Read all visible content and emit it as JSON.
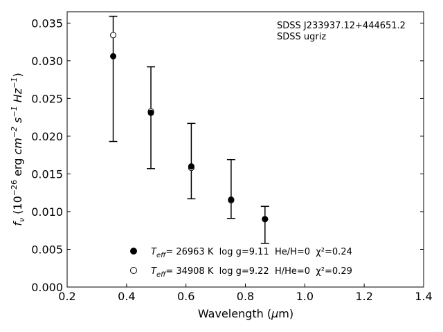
{
  "chart_data": {
    "type": "scatter",
    "xlabel": "Wavelength (μm)",
    "ylabel": "f_ν (10^-26 erg cm^-2 s^-1 Hz^-1)",
    "xlim": [
      0.2,
      1.4
    ],
    "ylim": [
      0.0,
      0.0365
    ],
    "xticks": [
      "0.2",
      "0.4",
      "0.6",
      "0.8",
      "1.0",
      "1.2",
      "1.4"
    ],
    "yticks": [
      "0.000",
      "0.005",
      "0.010",
      "0.015",
      "0.020",
      "0.025",
      "0.030",
      "0.035"
    ],
    "xtick_values": [
      0.2,
      0.4,
      0.6,
      0.8,
      1.0,
      1.2,
      1.4
    ],
    "ytick_values": [
      0.0,
      0.005,
      0.01,
      0.015,
      0.02,
      0.025,
      0.03,
      0.035
    ],
    "grid": false,
    "annotation": [
      "SDSS J233937.12+444651.2",
      "SDSS ugriz"
    ],
    "observed": {
      "x": [
        0.355,
        0.482,
        0.618,
        0.752,
        0.866
      ],
      "y_low": [
        0.0193,
        0.0157,
        0.0117,
        0.0091,
        0.0058
      ],
      "y_high": [
        0.0359,
        0.0292,
        0.0217,
        0.0169,
        0.0107
      ]
    },
    "series": [
      {
        "marker": "filled-circle",
        "legend_teff": "= 26963 K",
        "legend_rest": "  log g=9.11  He/H=0  χ²=0.24",
        "x": [
          0.355,
          0.482,
          0.618,
          0.752,
          0.866
        ],
        "y": [
          0.0306,
          0.0231,
          0.016,
          0.0116,
          0.009
        ]
      },
      {
        "marker": "open-circle",
        "legend_teff": "= 34908 K",
        "legend_rest": "  log g=9.22  H/He=0  χ²=0.29",
        "x": [
          0.355,
          0.482,
          0.618,
          0.752,
          0.866
        ],
        "y": [
          0.0334,
          0.0233,
          0.0158,
          0.0115,
          0.009
        ]
      }
    ]
  }
}
